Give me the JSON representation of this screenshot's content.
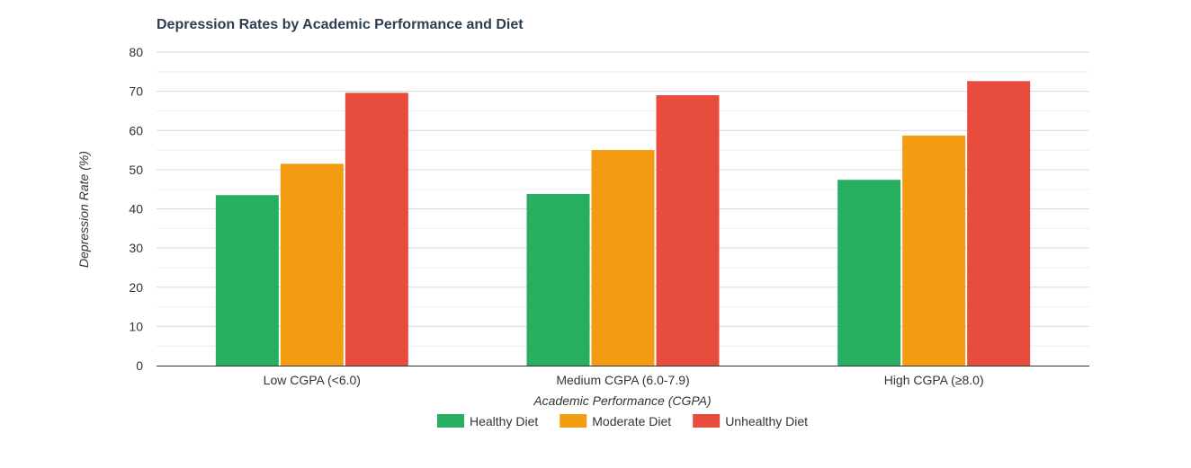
{
  "chart_data": {
    "type": "bar",
    "title": "Depression Rates by Academic Performance and Diet",
    "xlabel": "Academic Performance (CGPA)",
    "ylabel": "Depression Rate (%)",
    "ylim": [
      0,
      80
    ],
    "yticks": [
      0,
      10,
      20,
      30,
      40,
      50,
      60,
      70,
      80
    ],
    "grid": true,
    "legend_position": "bottom",
    "categories": [
      "Low CGPA (<6.0)",
      "Medium CGPA (6.0-7.9)",
      "High CGPA (≥8.0)"
    ],
    "series": [
      {
        "name": "Healthy Diet",
        "color": "#27ae60",
        "values": [
          43.5,
          43.8,
          47.4
        ]
      },
      {
        "name": "Moderate Diet",
        "color": "#f39c12",
        "values": [
          51.5,
          55.0,
          58.7
        ]
      },
      {
        "name": "Unhealthy Diet",
        "color": "#e74c3c",
        "values": [
          69.6,
          69.0,
          72.6
        ]
      }
    ]
  }
}
